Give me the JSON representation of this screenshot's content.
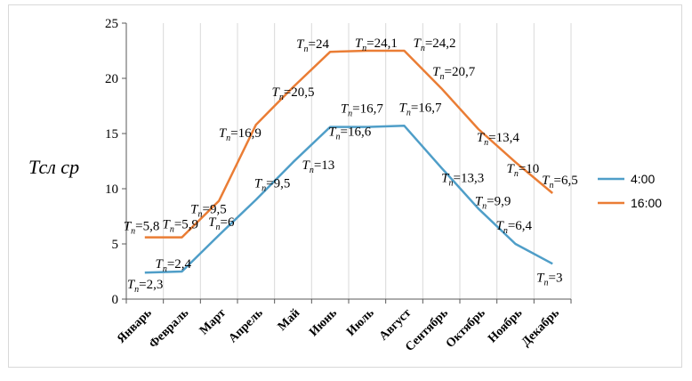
{
  "chart_data": {
    "type": "line",
    "title": "",
    "xlabel": "",
    "ylabel": "Тсл ср",
    "ylim": [
      0,
      25
    ],
    "yticks": [
      0,
      5,
      10,
      15,
      20,
      25
    ],
    "grid": "vertical",
    "legend_position": "right",
    "categories": [
      "Январь",
      "Февраль",
      "Март",
      "Апрель",
      "Май",
      "Июнь",
      "Июль",
      "Август",
      "Сентябрь",
      "Октябрь",
      "Ноябрь",
      "Декабрь"
    ],
    "series": [
      {
        "name": "4:00",
        "color": "#4f9ec8",
        "values": [
          2.4,
          2.5,
          5.8,
          9.0,
          12.4,
          15.6,
          15.6,
          15.7,
          11.9,
          8.2,
          5.0,
          3.2
        ],
        "labels": [
          {
            "category": "Январь",
            "prefix": "T",
            "sub": "n",
            "value": "=2,3"
          },
          {
            "category": "Февраль",
            "prefix": "T",
            "sub": "n",
            "value": "=2,4"
          },
          {
            "category": "Март",
            "prefix": "T",
            "sub": "n",
            "value": "=6"
          },
          {
            "category": "Апрель",
            "prefix": "T",
            "sub": "n",
            "value": "=9,5"
          },
          {
            "category": "Май",
            "prefix": "T",
            "sub": "n",
            "value": "=13"
          },
          {
            "category": "Июнь",
            "prefix": "T",
            "sub": "n",
            "value": "=16,6"
          },
          {
            "category": "Июль",
            "prefix": "T",
            "sub": "n",
            "value": "=16,7"
          },
          {
            "category": "Август",
            "prefix": "T",
            "sub": "n",
            "value": "=16,7"
          },
          {
            "category": "Сентябрь",
            "prefix": "T",
            "sub": "n",
            "value": "=13,3"
          },
          {
            "category": "Октябрь",
            "prefix": "T",
            "sub": "n",
            "value": "=9,9"
          },
          {
            "category": "Ноябрь",
            "prefix": "T",
            "sub": "n",
            "value": "=6,4"
          },
          {
            "category": "Декабрь",
            "prefix": "T",
            "sub": "n",
            "value": "=3"
          }
        ]
      },
      {
        "name": "16:00",
        "color": "#ea7d35",
        "values": [
          5.6,
          5.6,
          8.9,
          15.8,
          19.2,
          22.4,
          22.5,
          22.5,
          19.1,
          15.4,
          12.4,
          9.6
        ],
        "labels": [
          {
            "category": "Январь",
            "prefix": "T",
            "sub": "n",
            "value": "=5,8"
          },
          {
            "category": "Февраль",
            "prefix": "T",
            "sub": "n",
            "value": "=5,9"
          },
          {
            "category": "Март",
            "prefix": "T",
            "sub": "n",
            "value": "=9,5"
          },
          {
            "category": "Апрель",
            "prefix": "T",
            "sub": "n",
            "value": "=16,9"
          },
          {
            "category": "Май",
            "prefix": "T",
            "sub": "n",
            "value": "=20,5"
          },
          {
            "category": "Июнь",
            "prefix": "T",
            "sub": "n",
            "value": "=24"
          },
          {
            "category": "Июль",
            "prefix": "T",
            "sub": "n",
            "value": "=24,1"
          },
          {
            "category": "Август",
            "prefix": "T",
            "sub": "n",
            "value": "=24,2"
          },
          {
            "category": "Сентябрь",
            "prefix": "T",
            "sub": "n",
            "value": "=20,7"
          },
          {
            "category": "Октябрь",
            "prefix": "T",
            "sub": "n",
            "value": "=13,4"
          },
          {
            "category": "Ноябрь",
            "prefix": "T",
            "sub": "n",
            "value": "=10"
          },
          {
            "category": "Декабрь",
            "prefix": "T",
            "sub": "n",
            "value": "=6,5"
          }
        ]
      }
    ]
  }
}
